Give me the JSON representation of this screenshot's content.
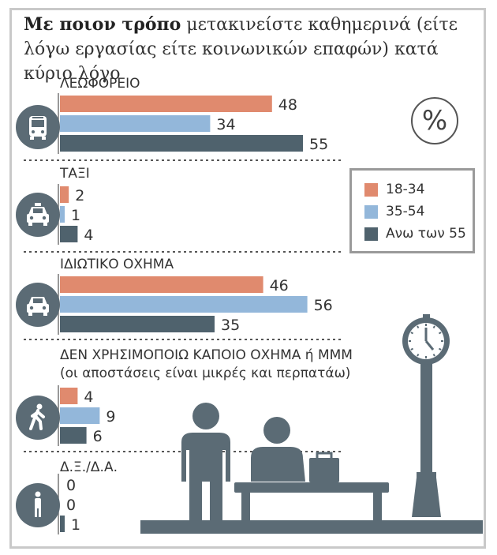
{
  "title": {
    "bold": "Με ποιον τρόπο",
    "rest": " μετακινείστε καθημερινά (είτε λόγω εργασίας είτε κοινωνικών επαφών) κατά κύριο λόγο"
  },
  "percent_symbol": "%",
  "colors": {
    "18-34": "#e08a6e",
    "35-54": "#93b7da",
    "55+": "#4f626d",
    "icon": "#5b6b75"
  },
  "legend": [
    "18-34",
    "35-54",
    "Ανω των 55"
  ],
  "chart_data": {
    "type": "bar",
    "orientation": "horizontal",
    "series": [
      {
        "name": "18-34",
        "values": [
          48,
          2,
          46,
          4,
          0
        ]
      },
      {
        "name": "35-54",
        "values": [
          34,
          1,
          56,
          9,
          0
        ]
      },
      {
        "name": "Ανω των 55",
        "values": [
          55,
          4,
          35,
          6,
          1
        ]
      }
    ],
    "categories": [
      "ΛΕΩΦΟΡΕΙΟ",
      "ΤΑΞΙ",
      "ΙΔΙΩΤΙΚΟ ΟΧΗΜΑ",
      "ΔΕΝ ΧΡΗΣΙΜΟΠΟΙΩ ΚΑΠΟΙΟ ΟΧΗΜΑ ή ΜΜΜ",
      "Δ.Ξ./Δ.Α."
    ],
    "category_notes": [
      "",
      "",
      "",
      "(οι αποστάσεις είναι μικρές και περπατάω)",
      ""
    ],
    "category_icons": [
      "bus-icon",
      "taxi-icon",
      "car-icon",
      "walking-person-icon",
      "person-icon"
    ],
    "unit": "%"
  }
}
